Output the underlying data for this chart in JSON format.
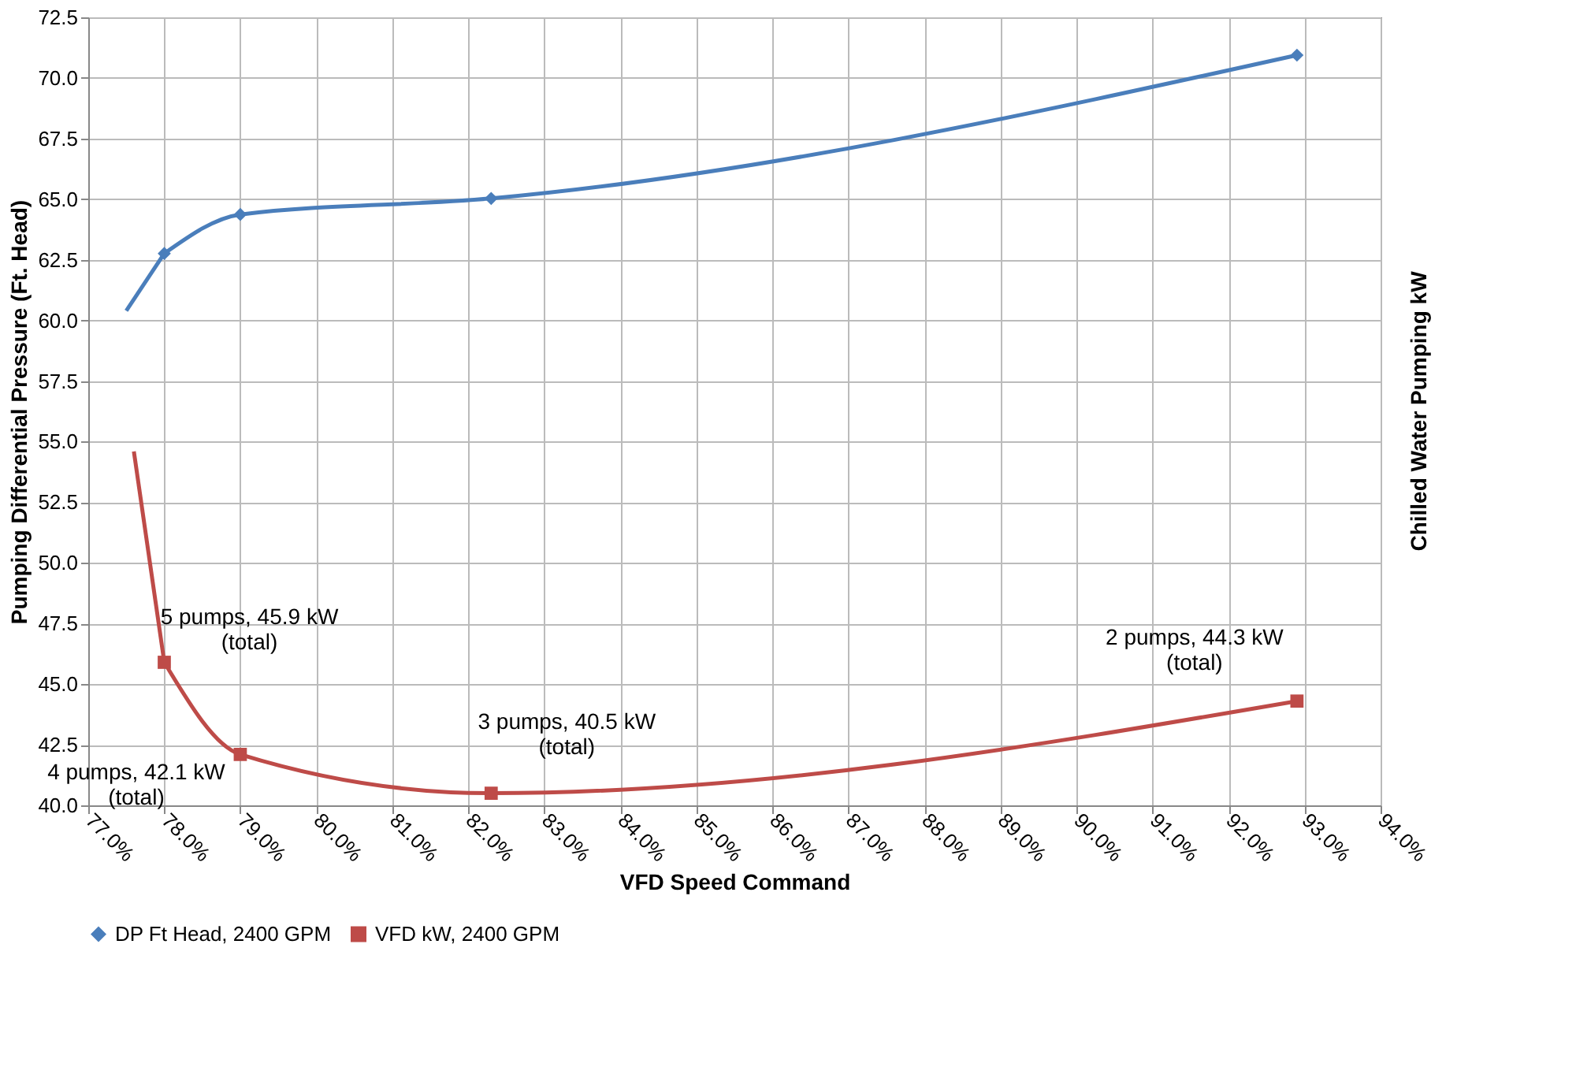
{
  "chart_data": {
    "type": "line",
    "xlabel": "VFD Speed Command",
    "ylabel": "Pumping Differential Pressure (Ft. Head)",
    "y2label": "Chilled Water Pumping kW",
    "xlim": [
      77,
      94
    ],
    "xticks": [
      {
        "value": 77,
        "label": "77.0%"
      },
      {
        "value": 78,
        "label": "78.0%"
      },
      {
        "value": 79,
        "label": "79.0%"
      },
      {
        "value": 80,
        "label": "80.0%"
      },
      {
        "value": 81,
        "label": "81.0%"
      },
      {
        "value": 82,
        "label": "82.0%"
      },
      {
        "value": 83,
        "label": "83.0%"
      },
      {
        "value": 84,
        "label": "84.0%"
      },
      {
        "value": 85,
        "label": "85.0%"
      },
      {
        "value": 86,
        "label": "86.0%"
      },
      {
        "value": 87,
        "label": "87.0%"
      },
      {
        "value": 88,
        "label": "88.0%"
      },
      {
        "value": 89,
        "label": "89.0%"
      },
      {
        "value": 90,
        "label": "90.0%"
      },
      {
        "value": 91,
        "label": "91.0%"
      },
      {
        "value": 92,
        "label": "92.0%"
      },
      {
        "value": 93,
        "label": "93.0%"
      },
      {
        "value": 94,
        "label": "94.0%"
      }
    ],
    "ylim": [
      40,
      72.5
    ],
    "yticks": [
      {
        "value": 40,
        "label": "40.0"
      },
      42.5,
      {
        "value": 45,
        "label": "45.0"
      },
      47.5,
      {
        "value": 50,
        "label": "50.0"
      },
      52.5,
      {
        "value": 55,
        "label": "55.0"
      },
      57.5,
      {
        "value": 60,
        "label": "60.0"
      },
      62.5,
      {
        "value": 65,
        "label": "65.0"
      },
      67.5,
      {
        "value": 70,
        "label": "70.0"
      },
      72.5
    ],
    "grid": true,
    "legend": "bottom",
    "line_style": "solid",
    "series": [
      {
        "name": "DP Ft Head, 2400 GPM",
        "color": "#4a7ebb",
        "marker": "diamond",
        "x": [
          78.0,
          79.0,
          82.3,
          92.9
        ],
        "values": [
          62.76,
          64.37,
          65.03,
          70.94
        ]
      },
      {
        "name": "VFD kW, 2400 GPM",
        "color": "#be4b48",
        "marker": "square",
        "x": [
          78.0,
          79.0,
          82.3,
          92.9
        ],
        "values": [
          45.9,
          42.1,
          40.5,
          44.3
        ]
      },
      {
        "color": "#4a7ebb",
        "marker": "none",
        "x": [
          78.0,
          77.5
        ],
        "values": [
          62.76,
          60.4
        ]
      },
      {
        "color": "#be4b48",
        "marker": "none",
        "x": [
          78.0,
          77.6
        ],
        "values": [
          45.9,
          54.6
        ]
      }
    ],
    "annotations": [
      {
        "text": "5 pumps, 45.9 kW\n(total)",
        "x": 78.0,
        "y": 45.9
      },
      {
        "text": "4 pumps, 42.1 kW\n(total)",
        "x": 79.0,
        "y": 42.1
      },
      {
        "text": "3 pumps, 40.5 kW\n(total)",
        "x": 82.3,
        "y": 40.5
      },
      {
        "text": "2 pumps, 44.3 kW\n(total)",
        "x": 92.9,
        "y": 44.3
      }
    ]
  }
}
